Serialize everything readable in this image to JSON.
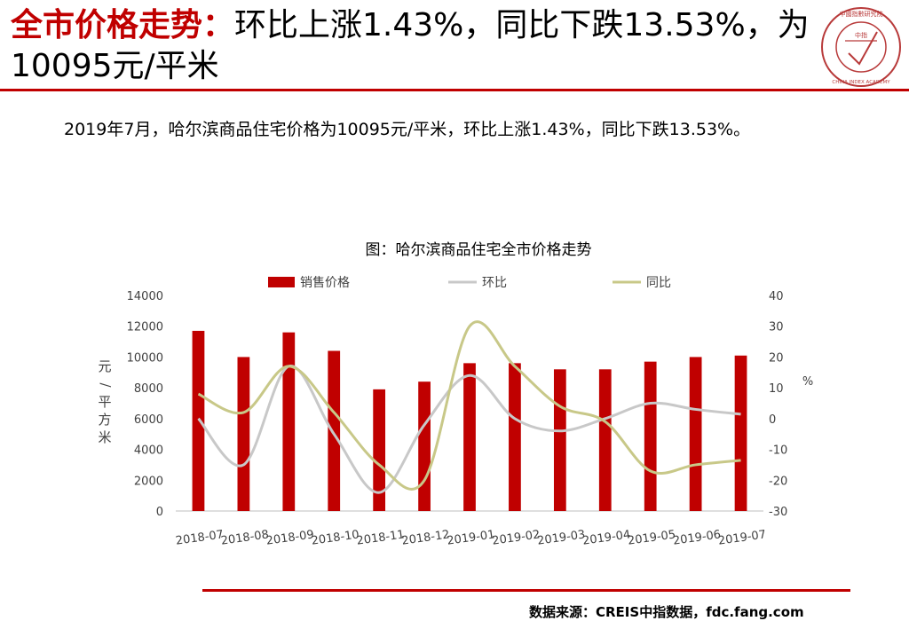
{
  "header": {
    "title_highlight": "全市价格走势：",
    "title_rest": "环比上涨1.43%，同比下跌13.53%，为10095元/平米"
  },
  "logo": {
    "text_ring": "中國指數研究院",
    "text_en": "CHINA INDEX ACADEMY",
    "text_center": "中指"
  },
  "summary": "2019年7月，哈尔滨商品住宅价格为10095元/平米，环比上涨1.43%，同比下跌13.53%。",
  "source": "数据来源：CREIS中指数据，fdc.fang.com",
  "colors": {
    "accent": "#c00000",
    "bar": "#c00000",
    "mom": "#c8c8c8",
    "yoy": "#c8c888"
  },
  "chart_data": {
    "type": "bar",
    "title": "图：哈尔滨商品住宅全市价格走势",
    "categories": [
      "2018-07",
      "2018-08",
      "2018-09",
      "2018-10",
      "2018-11",
      "2018-12",
      "2019-01",
      "2019-02",
      "2019-03",
      "2019-04",
      "2019-05",
      "2019-06",
      "2019-07"
    ],
    "series": [
      {
        "name": "销售价格",
        "type": "bar",
        "axis": "left",
        "values": [
          11700,
          10000,
          11600,
          10400,
          7900,
          8400,
          9600,
          9600,
          9200,
          9200,
          9700,
          10000,
          10095
        ]
      },
      {
        "name": "环比",
        "type": "line",
        "axis": "right",
        "values": [
          0,
          -15,
          17,
          -5,
          -24,
          -2,
          14,
          0,
          -4,
          0,
          5,
          3,
          1.43
        ]
      },
      {
        "name": "同比",
        "type": "line",
        "axis": "right",
        "values": [
          8,
          2,
          17,
          2,
          -15,
          -20,
          30,
          17,
          4,
          -1,
          -17,
          -15,
          -13.53
        ]
      }
    ],
    "ylabel": "元/平方米",
    "ylabel_right": "%",
    "ylim": [
      0,
      14000
    ],
    "ylim_right": [
      -30,
      40
    ],
    "yticks": [
      0,
      2000,
      4000,
      6000,
      8000,
      10000,
      12000,
      14000
    ],
    "yticks_right": [
      -30,
      -20,
      -10,
      0,
      10,
      20,
      30,
      40
    ],
    "legend_position": "top",
    "grid": false
  }
}
